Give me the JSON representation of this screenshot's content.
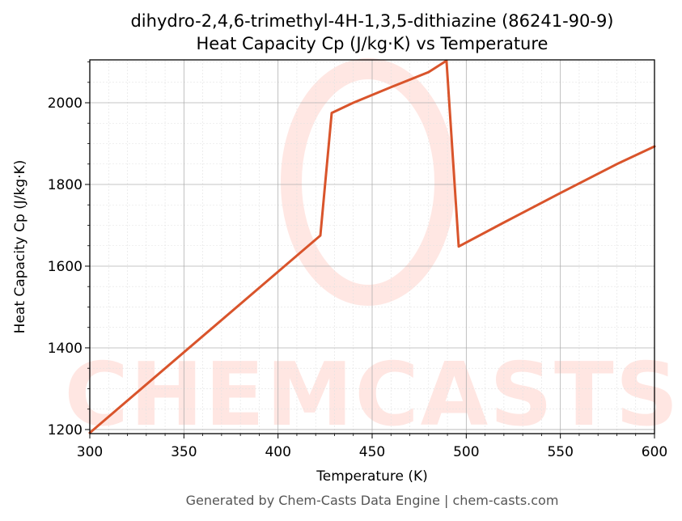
{
  "chart_data": {
    "type": "line",
    "title": "dihydro-2,4,6-trimethyl-4H-1,3,5-dithiazine (86241-90-9)",
    "subtitle": "Heat Capacity Cp (J/kg·K) vs Temperature",
    "xlabel": "Temperature (K)",
    "ylabel": "Heat Capacity Cp (J/kg·K)",
    "xlim": [
      300,
      600
    ],
    "ylim": [
      1190,
      2105
    ],
    "x_ticks": [
      300,
      350,
      400,
      450,
      500,
      550,
      600
    ],
    "x_tick_labels": [
      "300",
      "350",
      "400",
      "450",
      "500",
      "550",
      "600"
    ],
    "y_ticks": [
      1200,
      1400,
      1600,
      1800,
      2000
    ],
    "y_tick_labels": [
      "1200",
      "1400",
      "1600",
      "1800",
      "2000"
    ],
    "grid": true,
    "legend": "none",
    "line_color": "#d9542b",
    "series": [
      {
        "x": [
          300,
          422.5,
          428.5,
          440,
          460,
          480,
          489.5,
          496,
          520,
          550,
          580,
          600
        ],
        "values": [
          1192,
          1675,
          1975,
          2000,
          2038,
          2075,
          2103,
          1648,
          1707,
          1779,
          1850,
          1893
        ]
      }
    ]
  },
  "watermark": {
    "text": "CHEMCASTS"
  },
  "footer": {
    "text": "Generated by Chem-Casts Data Engine | chem-casts.com"
  }
}
